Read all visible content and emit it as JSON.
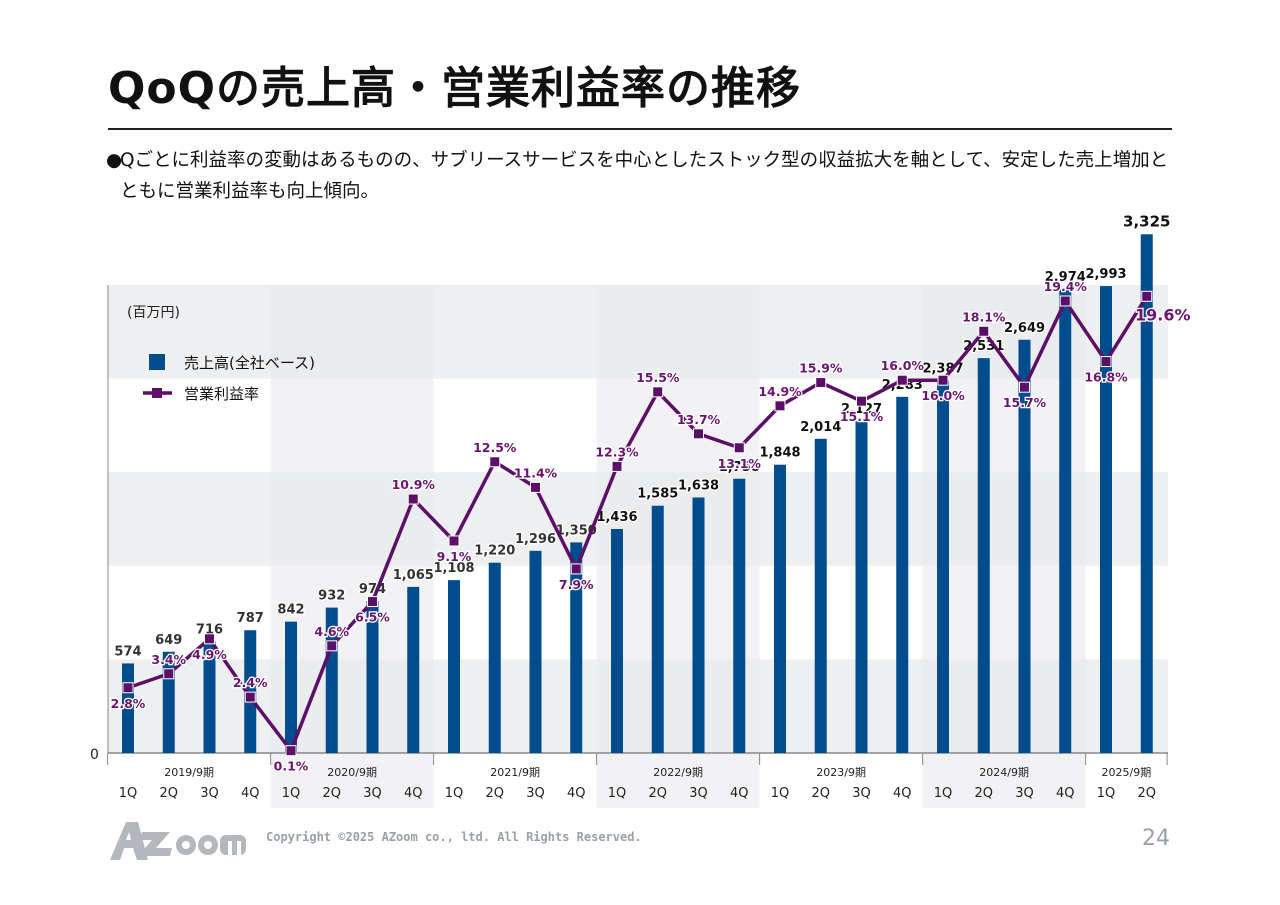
{
  "page": {
    "title": "QoQの売上高・営業利益率の推移",
    "bullet_marker": "●",
    "bullet_text": "Qごとに利益率の変動はあるものの、サブリースサービスを中心としたストック型の収益拡大を軸として、安定した売上増加とともに営業利益率も向上傾向。",
    "copyright": "Copyright ©2025 AZoom co., ltd. All Rights Reserved.",
    "page_number": "24",
    "logo_alt": "AZoom"
  },
  "chart_data": {
    "type": "bar",
    "unit_label": "(百万円)",
    "y_zero_label": "0",
    "ylim": [
      0,
      3500
    ],
    "y2lim": [
      0,
      25
    ],
    "grid": true,
    "legend": {
      "placement": "top-left",
      "entries": [
        "売上高(全社ベース)",
        "営業利益率"
      ]
    },
    "colors": {
      "bar": "#004c8c",
      "line": "#5b0f66",
      "line_label": "#6a1570",
      "band": "#eeeff1"
    },
    "years": [
      "2019/9期",
      "2020/9期",
      "2021/9期",
      "2022/9期",
      "2023/9期",
      "2024/9期",
      "2025/9期"
    ],
    "quarters": [
      "1Q",
      "2Q",
      "3Q",
      "4Q",
      "1Q",
      "2Q",
      "3Q",
      "4Q",
      "1Q",
      "2Q",
      "3Q",
      "4Q",
      "1Q",
      "2Q",
      "3Q",
      "4Q",
      "1Q",
      "2Q",
      "3Q",
      "4Q",
      "1Q",
      "2Q",
      "3Q",
      "4Q",
      "1Q",
      "2Q"
    ],
    "series": [
      {
        "name": "売上高(全社ベース)",
        "type": "bar",
        "values": [
          574,
          649,
          716,
          787,
          842,
          932,
          974,
          1065,
          1108,
          1220,
          1296,
          1350,
          1436,
          1585,
          1638,
          1758,
          1848,
          2014,
          2127,
          2283,
          2387,
          2531,
          2649,
          2974,
          2993,
          3325
        ],
        "labels": [
          "574",
          "649",
          "716",
          "787",
          "842",
          "932",
          "974",
          "1,065",
          "1,108",
          "1,220",
          "1,296",
          "1,350",
          "1,436",
          "1,585",
          "1,638",
          "1,758",
          "1,848",
          "2,014",
          "2,127",
          "2,283",
          "2,387",
          "2,531",
          "2,649",
          "2,974",
          "2,993",
          "3,325"
        ]
      },
      {
        "name": "営業利益率",
        "type": "line",
        "values": [
          2.8,
          3.4,
          4.9,
          2.4,
          0.1,
          4.6,
          6.5,
          10.9,
          9.1,
          12.5,
          11.4,
          7.9,
          12.3,
          15.5,
          13.7,
          13.1,
          14.9,
          15.9,
          15.1,
          16.0,
          16.0,
          18.1,
          15.7,
          19.4,
          16.8,
          19.6
        ],
        "labels": [
          "2.8%",
          "3.4%",
          "4.9%",
          "2.4%",
          "0.1%",
          "4.6%",
          "6.5%",
          "10.9%",
          "9.1%",
          "12.5%",
          "11.4%",
          "7.9%",
          "12.3%",
          "15.5%",
          "13.7%",
          "13.1%",
          "14.9%",
          "15.9%",
          "15.1%",
          "16.0%",
          "16.0%",
          "18.1%",
          "15.7%",
          "19.4%",
          "16.8%",
          "19.6%"
        ]
      }
    ]
  }
}
